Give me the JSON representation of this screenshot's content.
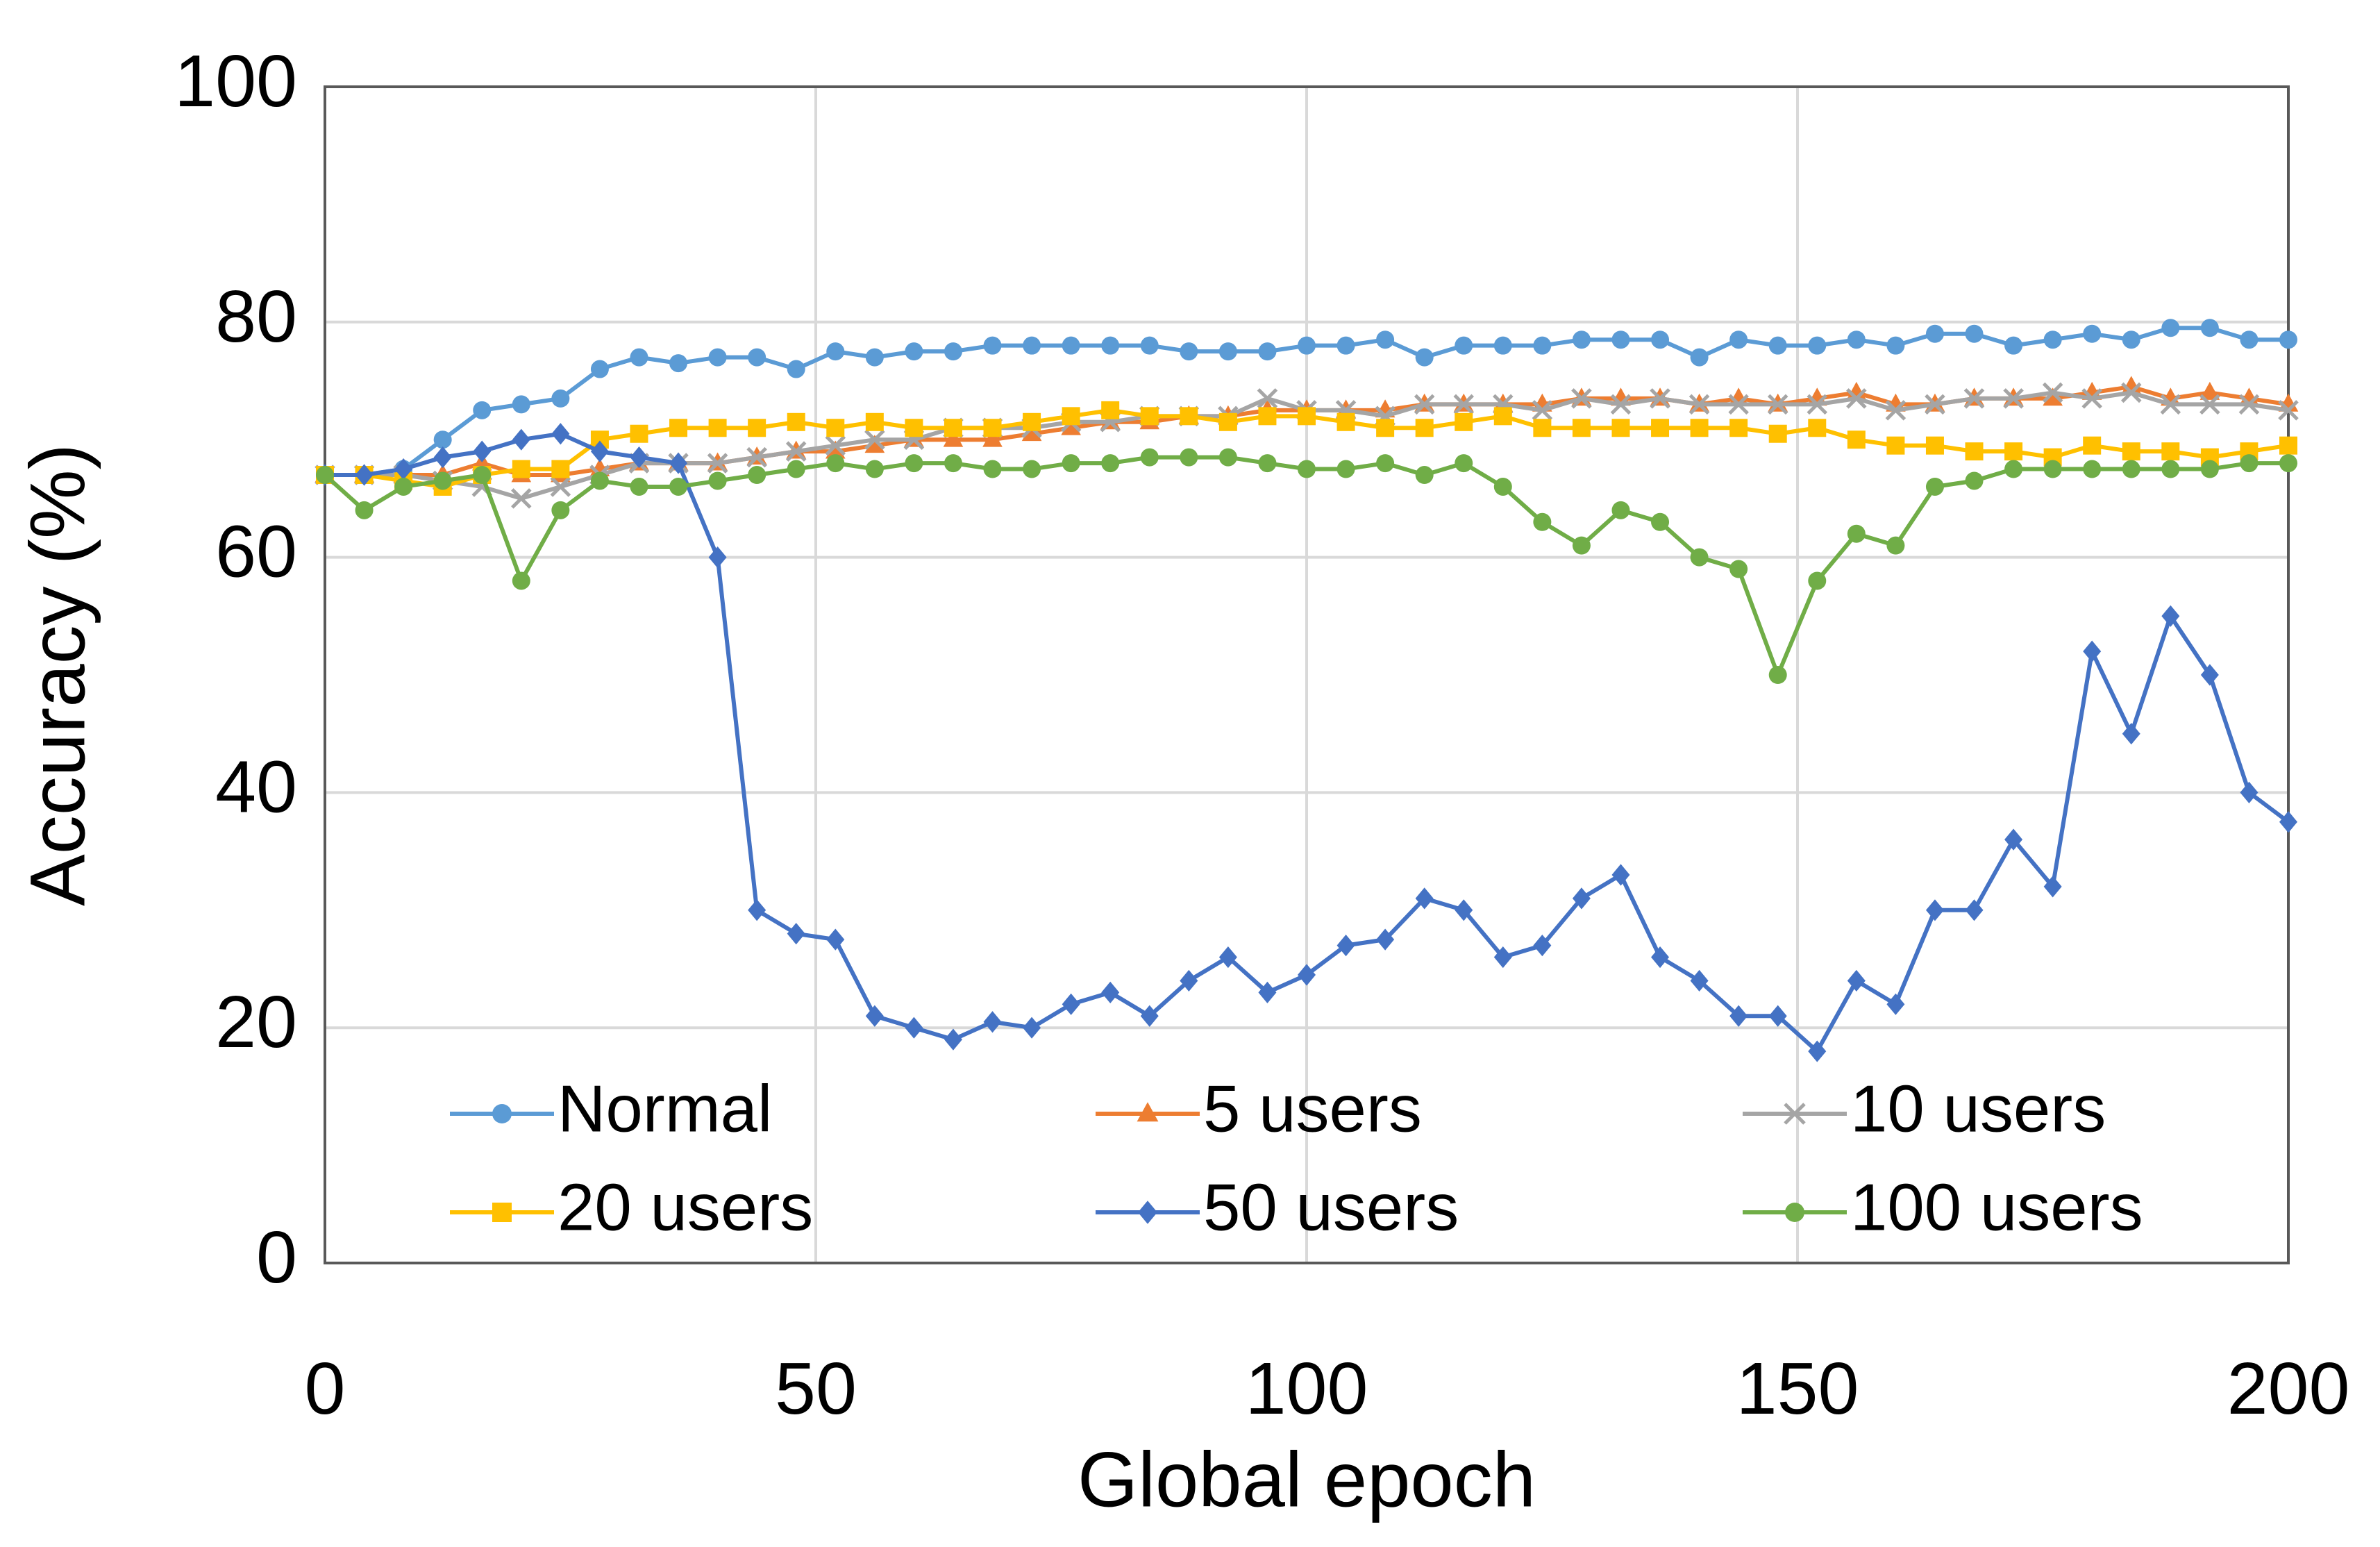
{
  "chart_data": {
    "type": "line",
    "xlabel": "Global epoch",
    "ylabel": "Accuracy (%)",
    "x": [
      0,
      4,
      8,
      12,
      16,
      20,
      24,
      28,
      32,
      36,
      40,
      44,
      48,
      52,
      56,
      60,
      64,
      68,
      72,
      76,
      80,
      84,
      88,
      92,
      96,
      100,
      104,
      108,
      112,
      116,
      120,
      124,
      128,
      132,
      136,
      140,
      144,
      148,
      152,
      156,
      160,
      164,
      168,
      172,
      176,
      180,
      184,
      188,
      192,
      196,
      200
    ],
    "xlim": [
      0,
      200
    ],
    "xticks": [
      0,
      50,
      100,
      150,
      200
    ],
    "ylim": [
      0,
      100
    ],
    "yticks": [
      0,
      20,
      40,
      60,
      80,
      100
    ],
    "grid": true,
    "legend": "bottom",
    "series": [
      {
        "name": "Normal",
        "color": "#5b9bd5",
        "marker": "circle",
        "values": [
          67,
          67,
          67.5,
          70,
          72.5,
          73,
          73.5,
          76,
          77,
          76.5,
          77,
          77,
          76,
          77.5,
          77,
          77.5,
          77.5,
          78,
          78,
          78,
          78,
          78,
          77.5,
          77.5,
          77.5,
          78,
          78,
          78.5,
          77,
          78,
          78,
          78,
          78.5,
          78.5,
          78.5,
          77,
          78.5,
          78,
          78,
          78.5,
          78,
          79,
          79,
          78,
          78.5,
          79,
          78.5,
          79.5,
          79.5,
          78.5,
          78.5
        ]
      },
      {
        "name": "5 users",
        "color": "#ed7d31",
        "marker": "triangle",
        "values": [
          67,
          67,
          67,
          67,
          68,
          67,
          67,
          67.5,
          68,
          68,
          68,
          68.5,
          69,
          69,
          69.5,
          70,
          70,
          70,
          70.5,
          71,
          71.5,
          71.5,
          72,
          72,
          72.5,
          72.5,
          72.5,
          72.5,
          73,
          73,
          73,
          73,
          73.5,
          73.5,
          73.5,
          73,
          73.5,
          73,
          73.5,
          74,
          73,
          73,
          73.5,
          73.5,
          73.5,
          74,
          74.5,
          73.5,
          74,
          73.5,
          73
        ]
      },
      {
        "name": "10 users",
        "color": "#a5a5a5",
        "marker": "x",
        "values": [
          67,
          67,
          67,
          66.5,
          66,
          65,
          66,
          67,
          68,
          68,
          68,
          68.5,
          69,
          69.5,
          70,
          70,
          71,
          71,
          71,
          71.5,
          71.5,
          72,
          72,
          72,
          73.5,
          72.5,
          72.5,
          72,
          73,
          73,
          73,
          72.5,
          73.5,
          73,
          73.5,
          73,
          73,
          73,
          73,
          73.5,
          72.5,
          73,
          73.5,
          73.5,
          74,
          73.5,
          74,
          73,
          73,
          73,
          72.5
        ]
      },
      {
        "name": "20 users",
        "color": "#ffc000",
        "marker": "square",
        "values": [
          67,
          67,
          66.5,
          66,
          67,
          67.5,
          67.5,
          70,
          70.5,
          71,
          71,
          71,
          71.5,
          71,
          71.5,
          71,
          71,
          71,
          71.5,
          72,
          72.5,
          72,
          72,
          71.5,
          72,
          72,
          71.5,
          71,
          71,
          71.5,
          72,
          71,
          71,
          71,
          71,
          71,
          71,
          70.5,
          71,
          70,
          69.5,
          69.5,
          69,
          69,
          68.5,
          69.5,
          69,
          69,
          68.5,
          69,
          69.5
        ]
      },
      {
        "name": "50 users",
        "color": "#4472c4",
        "marker": "diamond",
        "values": [
          67,
          67,
          67.5,
          68.5,
          69,
          70,
          70.5,
          69,
          68.5,
          68,
          60,
          30,
          28,
          27.5,
          21,
          20,
          19,
          20.5,
          20,
          22,
          23,
          21,
          24,
          26,
          23,
          24.5,
          27,
          27.5,
          31,
          30,
          26,
          27,
          31,
          33,
          26,
          24,
          21,
          21,
          18,
          24,
          22,
          30,
          30,
          36,
          32,
          52,
          45,
          55,
          50,
          40,
          37.5
        ]
      },
      {
        "name": "100 users",
        "color": "#70ad47",
        "marker": "circle",
        "values": [
          67,
          64,
          66,
          66.5,
          67,
          58,
          64,
          66.5,
          66,
          66,
          66.5,
          67,
          67.5,
          68,
          67.5,
          68,
          68,
          67.5,
          67.5,
          68,
          68,
          68.5,
          68.5,
          68.5,
          68,
          67.5,
          67.5,
          68,
          67,
          68,
          66,
          63,
          61,
          64,
          63,
          60,
          59,
          50,
          58,
          62,
          61,
          66,
          66.5,
          67.5,
          67.5,
          67.5,
          67.5,
          67.5,
          67.5,
          68,
          68
        ]
      }
    ]
  }
}
